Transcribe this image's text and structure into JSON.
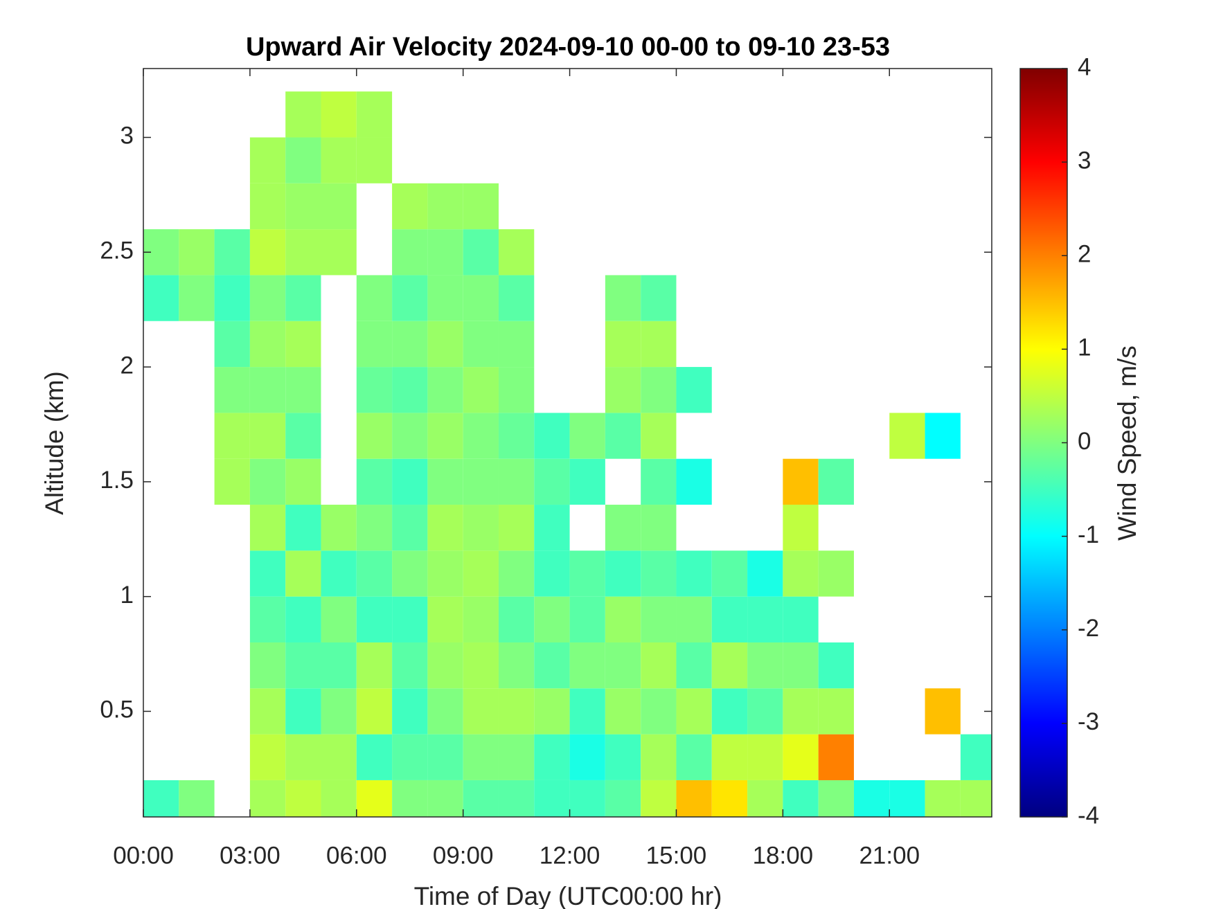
{
  "chart_data": {
    "type": "heatmap",
    "title": "Upward Air Velocity 2024-09-10 00-00 to 09-10 23-53",
    "x_label": "Time of Day (UTC00:00 hr)",
    "y_label": "Altitude (km)",
    "colorbar_label": "Wind Speed, m/s",
    "colormap": "jet",
    "clim": [
      -4,
      4
    ],
    "cticks": [
      -4,
      -3,
      -2,
      -1,
      0,
      1,
      2,
      3,
      4
    ],
    "xlim": [
      0,
      23.88
    ],
    "ylim": [
      0.04,
      3.3
    ],
    "xticks": [
      {
        "value": 0,
        "label": "00:00"
      },
      {
        "value": 3,
        "label": "03:00"
      },
      {
        "value": 6,
        "label": "06:00"
      },
      {
        "value": 9,
        "label": "09:00"
      },
      {
        "value": 12,
        "label": "12:00"
      },
      {
        "value": 15,
        "label": "15:00"
      },
      {
        "value": 18,
        "label": "18:00"
      },
      {
        "value": 21,
        "label": "21:00"
      }
    ],
    "yticks": [
      0.5,
      1,
      1.5,
      2,
      2.5,
      3
    ],
    "x": [
      0.5,
      1.5,
      2.5,
      3.5,
      4.5,
      5.5,
      6.5,
      7.5,
      8.5,
      9.5,
      10.5,
      11.5,
      12.5,
      13.5,
      14.5,
      15.5,
      16.5,
      17.5,
      18.5,
      19.5,
      20.5,
      21.5,
      22.5,
      23.5
    ],
    "y": [
      0.1,
      0.3,
      0.5,
      0.7,
      0.9,
      1.1,
      1.3,
      1.5,
      1.7,
      1.9,
      2.1,
      2.3,
      2.5,
      2.7,
      2.9,
      3.1
    ],
    "z": [
      [
        -0.5,
        0,
        null,
        0.3,
        0.5,
        0.3,
        0.8,
        0,
        0,
        -0.3,
        -0.3,
        -0.5,
        -0.5,
        -0.3,
        0.5,
        1.5,
        1.2,
        0.3,
        -0.5,
        0,
        -0.8,
        -0.8,
        0.3,
        0.3
      ],
      [
        null,
        null,
        null,
        0.5,
        0.3,
        0.3,
        -0.5,
        -0.3,
        -0.3,
        0,
        0,
        -0.5,
        -0.8,
        -0.5,
        0.3,
        -0.3,
        0.5,
        0.5,
        0.8,
        2,
        null,
        null,
        null,
        -0.5
      ],
      [
        null,
        null,
        null,
        0.3,
        -0.5,
        0,
        0.5,
        -0.5,
        0,
        0.3,
        0.3,
        0.2,
        -0.5,
        0.2,
        0,
        0.3,
        -0.5,
        -0.3,
        0.3,
        0.3,
        null,
        null,
        1.5,
        null
      ],
      [
        null,
        null,
        null,
        0,
        -0.3,
        -0.3,
        0.3,
        -0.3,
        0.2,
        0.3,
        0,
        -0.3,
        0,
        0,
        0.3,
        -0.3,
        0.3,
        0,
        0,
        -0.5,
        null,
        null,
        null,
        null
      ],
      [
        null,
        null,
        null,
        -0.3,
        -0.5,
        0,
        -0.5,
        -0.5,
        0.3,
        0.2,
        -0.3,
        0,
        -0.3,
        0.2,
        0,
        0,
        -0.5,
        -0.5,
        -0.5,
        null,
        null,
        null,
        null,
        null
      ],
      [
        null,
        null,
        null,
        -0.5,
        0.3,
        -0.5,
        -0.3,
        0,
        0.2,
        0.3,
        0,
        -0.5,
        -0.3,
        -0.5,
        -0.3,
        -0.5,
        -0.3,
        -0.8,
        0.3,
        0.2,
        null,
        null,
        null,
        null
      ],
      [
        null,
        null,
        null,
        0.3,
        -0.5,
        0.2,
        0,
        -0.3,
        0.3,
        0.2,
        0.3,
        -0.5,
        null,
        0,
        0,
        null,
        null,
        null,
        0.5,
        null,
        null,
        null,
        null,
        null
      ],
      [
        null,
        null,
        0.3,
        0,
        0.2,
        null,
        -0.3,
        -0.5,
        0,
        0,
        0,
        -0.3,
        -0.5,
        null,
        -0.3,
        -0.8,
        null,
        null,
        1.5,
        -0.3,
        null,
        null,
        null,
        null
      ],
      [
        null,
        null,
        0.3,
        0.3,
        -0.3,
        null,
        0.2,
        0,
        0.2,
        0,
        -0.2,
        -0.5,
        0,
        -0.3,
        0.3,
        null,
        null,
        null,
        null,
        null,
        null,
        0.5,
        -1,
        null
      ],
      [
        null,
        null,
        0,
        0,
        0,
        null,
        -0.2,
        -0.3,
        0,
        0.2,
        0,
        null,
        null,
        0.2,
        0,
        -0.5,
        null,
        null,
        null,
        null,
        null,
        null,
        null,
        null
      ],
      [
        null,
        null,
        -0.3,
        0.2,
        0.3,
        null,
        0,
        0,
        0.2,
        0,
        0,
        null,
        null,
        0.3,
        0.3,
        null,
        null,
        null,
        null,
        null,
        null,
        null,
        null,
        null
      ],
      [
        -0.5,
        0,
        -0.5,
        0,
        -0.3,
        null,
        0,
        -0.3,
        0,
        0,
        -0.3,
        null,
        null,
        0,
        -0.3,
        null,
        null,
        null,
        null,
        null,
        null,
        null,
        null,
        null
      ],
      [
        0,
        0.2,
        -0.3,
        0.5,
        0.3,
        0.3,
        null,
        0,
        0,
        -0.3,
        0.3,
        null,
        null,
        null,
        null,
        null,
        null,
        null,
        null,
        null,
        null,
        null,
        null,
        null
      ],
      [
        null,
        null,
        null,
        0.3,
        0.2,
        0.2,
        null,
        0.3,
        0.2,
        0.2,
        null,
        null,
        null,
        null,
        null,
        null,
        null,
        null,
        null,
        null,
        null,
        null,
        null,
        null
      ],
      [
        null,
        null,
        null,
        0.3,
        0,
        0.3,
        0.3,
        null,
        null,
        null,
        null,
        null,
        null,
        null,
        null,
        null,
        null,
        null,
        null,
        null,
        null,
        null,
        null,
        null
      ],
      [
        null,
        null,
        null,
        null,
        0.3,
        0.5,
        0.3,
        null,
        null,
        null,
        null,
        null,
        null,
        null,
        null,
        null,
        null,
        null,
        null,
        null,
        null,
        null,
        null,
        null
      ]
    ]
  }
}
